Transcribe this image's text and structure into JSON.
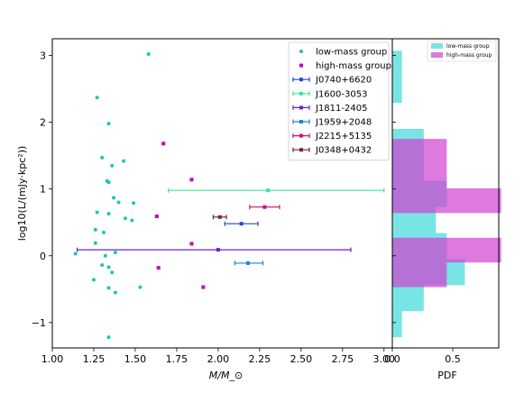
{
  "chart_data": [
    {
      "type": "scatter",
      "xlabel": "M/M_⊙",
      "ylabel": "log10(L/(mJy·kpc²))",
      "xlim": [
        1.0,
        3.05
      ],
      "ylim": [
        -1.38,
        3.25
      ],
      "xticks": [
        "1.00",
        "1.25",
        "1.50",
        "1.75",
        "2.00",
        "2.25",
        "2.50",
        "2.75",
        "3.00"
      ],
      "yticks": [
        "−1",
        "0",
        "1",
        "2",
        "3"
      ],
      "legend_position": "top-right",
      "series": [
        {
          "name": "low-mass group",
          "color": "#1fc4b4",
          "points": [
            [
              1.58,
              3.02
            ],
            [
              1.27,
              2.37
            ],
            [
              1.34,
              1.98
            ],
            [
              1.3,
              1.47
            ],
            [
              1.43,
              1.42
            ],
            [
              1.36,
              1.35
            ],
            [
              1.33,
              1.12
            ],
            [
              1.34,
              1.1
            ],
            [
              1.37,
              0.87
            ],
            [
              1.4,
              0.8
            ],
            [
              1.27,
              0.65
            ],
            [
              1.34,
              0.63
            ],
            [
              1.44,
              0.56
            ],
            [
              1.49,
              0.79
            ],
            [
              1.48,
              0.53
            ],
            [
              1.26,
              0.39
            ],
            [
              1.31,
              0.35
            ],
            [
              1.26,
              0.19
            ],
            [
              1.38,
              0.05
            ],
            [
              1.14,
              0.03
            ],
            [
              1.32,
              0.0
            ],
            [
              1.3,
              -0.14
            ],
            [
              1.34,
              -0.17
            ],
            [
              1.36,
              -0.25
            ],
            [
              1.25,
              -0.36
            ],
            [
              1.34,
              -0.48
            ],
            [
              1.38,
              -0.55
            ],
            [
              1.53,
              -0.47
            ],
            [
              1.34,
              -1.22
            ]
          ]
        },
        {
          "name": "high-mass group",
          "color": "#c000c0",
          "points": [
            [
              1.67,
              1.68
            ],
            [
              1.84,
              1.14
            ],
            [
              1.63,
              0.59
            ],
            [
              1.84,
              0.18
            ],
            [
              1.64,
              -0.18
            ],
            [
              1.91,
              -0.47
            ]
          ]
        }
      ],
      "error_bars": [
        {
          "name": "J0740+6620",
          "color": "#1f49d6",
          "x": 2.14,
          "y": 0.48,
          "xerr": [
            0.1,
            0.1
          ]
        },
        {
          "name": "J1600-3053",
          "color": "#33e89c",
          "x": 2.3,
          "y": 0.98,
          "xerr": [
            0.6,
            0.7
          ]
        },
        {
          "name": "J1811-2405",
          "color": "#6a22d4",
          "x": 2.0,
          "y": 0.09,
          "xerr": [
            0.85,
            0.8
          ]
        },
        {
          "name": "J1959+2048",
          "color": "#2080e0",
          "x": 2.18,
          "y": -0.11,
          "xerr": [
            0.08,
            0.09
          ]
        },
        {
          "name": "J2215+5135",
          "color": "#c4127a",
          "x": 2.28,
          "y": 0.73,
          "xerr": [
            0.09,
            0.09
          ]
        },
        {
          "name": "J0348+0432",
          "color": "#7a2240",
          "x": 2.01,
          "y": 0.58,
          "xerr": [
            0.04,
            0.04
          ]
        }
      ]
    },
    {
      "type": "bar",
      "orientation": "horizontal",
      "xlabel": "PDF",
      "xlim": [
        0.0,
        0.88
      ],
      "xticks": [
        "0.0",
        "0.5"
      ],
      "legend_position": "top-right",
      "series": [
        {
          "name": "low-mass group",
          "color": "#40d8d8",
          "bins": [
            [
              -1.22,
              -0.83,
              0.08
            ],
            [
              -0.83,
              -0.44,
              0.26
            ],
            [
              -0.44,
              -0.05,
              0.6
            ],
            [
              -0.05,
              0.34,
              0.45
            ],
            [
              0.34,
              0.73,
              0.36
            ],
            [
              0.73,
              1.12,
              0.45
            ],
            [
              1.12,
              1.51,
              0.26
            ],
            [
              1.51,
              1.9,
              0.26
            ],
            [
              1.9,
              2.29,
              0.0
            ],
            [
              2.29,
              2.68,
              0.08
            ],
            [
              2.68,
              3.07,
              0.08
            ]
          ]
        },
        {
          "name": "high-mass group",
          "color": "#d040d0",
          "bins": [
            [
              -0.47,
              -0.1,
              0.45
            ],
            [
              -0.1,
              0.27,
              0.9
            ],
            [
              0.27,
              0.64,
              0.0
            ],
            [
              0.64,
              1.01,
              0.9
            ],
            [
              1.01,
              1.38,
              0.45
            ],
            [
              1.38,
              1.75,
              0.45
            ]
          ]
        }
      ]
    }
  ]
}
